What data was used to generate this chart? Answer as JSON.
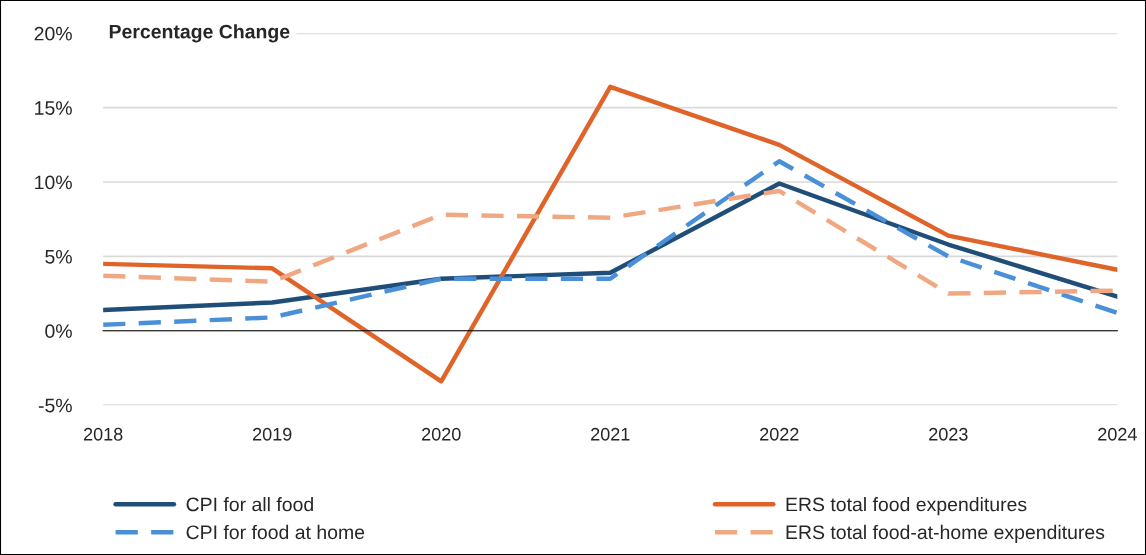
{
  "chart_data": {
    "type": "line",
    "title": "Percentage Change",
    "categories": [
      "2018",
      "2019",
      "2020",
      "2021",
      "2022",
      "2023",
      "2024"
    ],
    "series": [
      {
        "name": "CPI for all food",
        "color": "#1f4e79",
        "line_style": "solid",
        "values": [
          1.4,
          1.9,
          3.5,
          3.9,
          9.9,
          5.8,
          2.3
        ]
      },
      {
        "name": "ERS total food expenditures",
        "color": "#e0642a",
        "line_style": "solid",
        "values": [
          4.5,
          4.2,
          -3.4,
          16.4,
          12.5,
          6.4,
          4.1
        ]
      },
      {
        "name": "CPI for food at home",
        "color": "#4a90d9",
        "line_style": "dashed",
        "values": [
          0.4,
          0.9,
          3.5,
          3.5,
          11.4,
          5.0,
          1.2
        ]
      },
      {
        "name": "ERS total food-at-home expenditures",
        "color": "#f0a882",
        "line_style": "dashed",
        "values": [
          3.7,
          3.3,
          7.8,
          7.6,
          9.4,
          2.5,
          2.7
        ]
      }
    ],
    "ylim": [
      -5,
      20
    ],
    "yticks": [
      {
        "value": -5,
        "label": "-5%"
      },
      {
        "value": 0,
        "label": "0%"
      },
      {
        "value": 5,
        "label": "5%"
      },
      {
        "value": 10,
        "label": "10%"
      },
      {
        "value": 15,
        "label": "15%"
      },
      {
        "value": 20,
        "label": "20%"
      }
    ],
    "grid": "y",
    "legend": "bottom",
    "marker": "none"
  }
}
